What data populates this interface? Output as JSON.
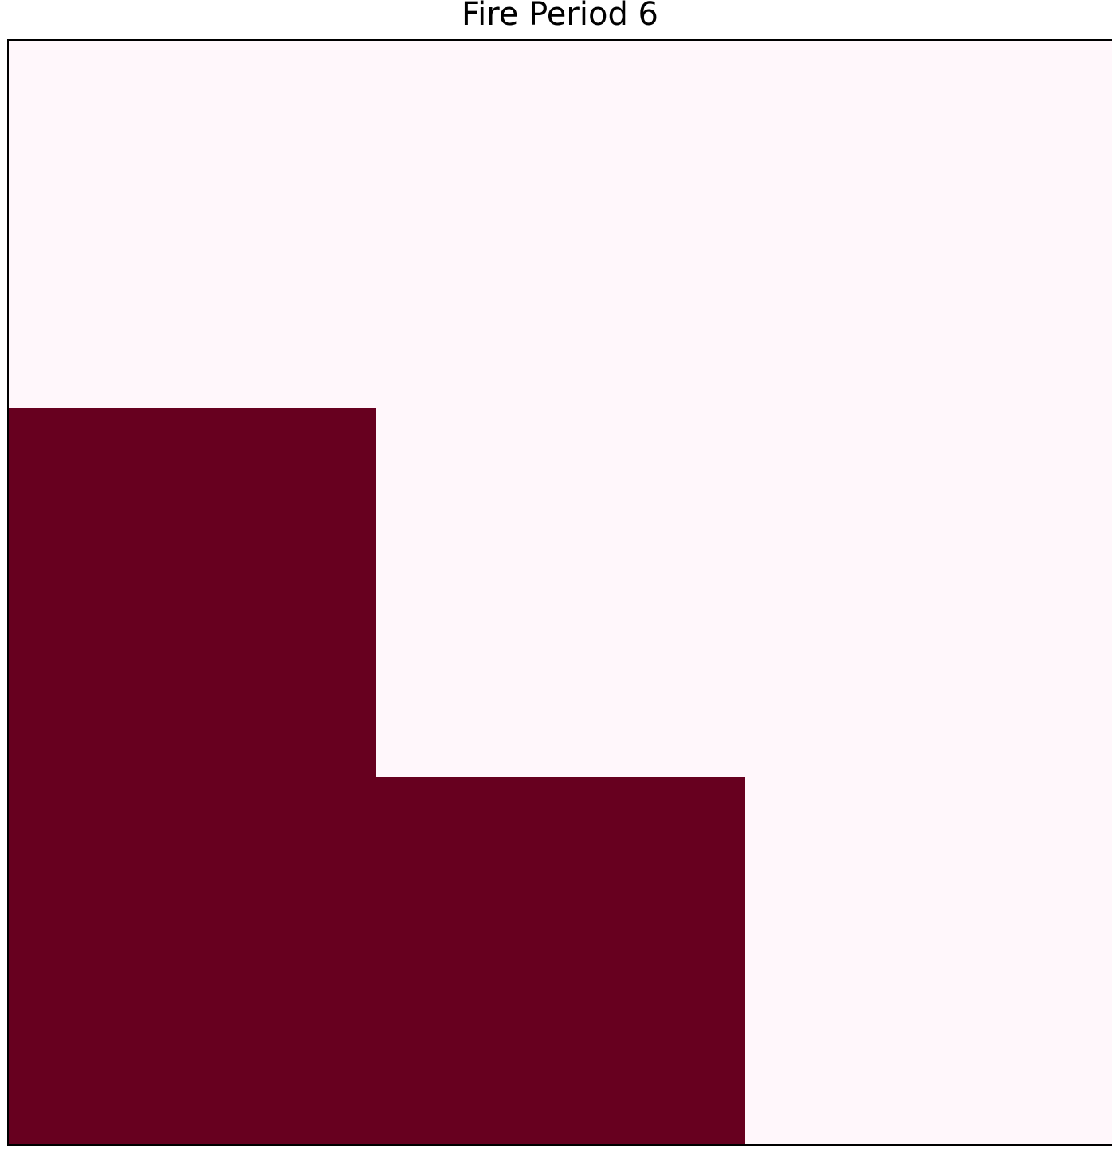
{
  "chart_data": {
    "type": "heatmap",
    "title": "Fire Period 6",
    "xlabel": "",
    "ylabel": "",
    "grid": false,
    "legend": "none",
    "rows": 3,
    "cols": 3,
    "values": [
      [
        0,
        0,
        0
      ],
      [
        1,
        0,
        0
      ],
      [
        1,
        1,
        0
      ]
    ],
    "colormap": {
      "0": "#fff7fb",
      "1": "#67001f"
    }
  }
}
